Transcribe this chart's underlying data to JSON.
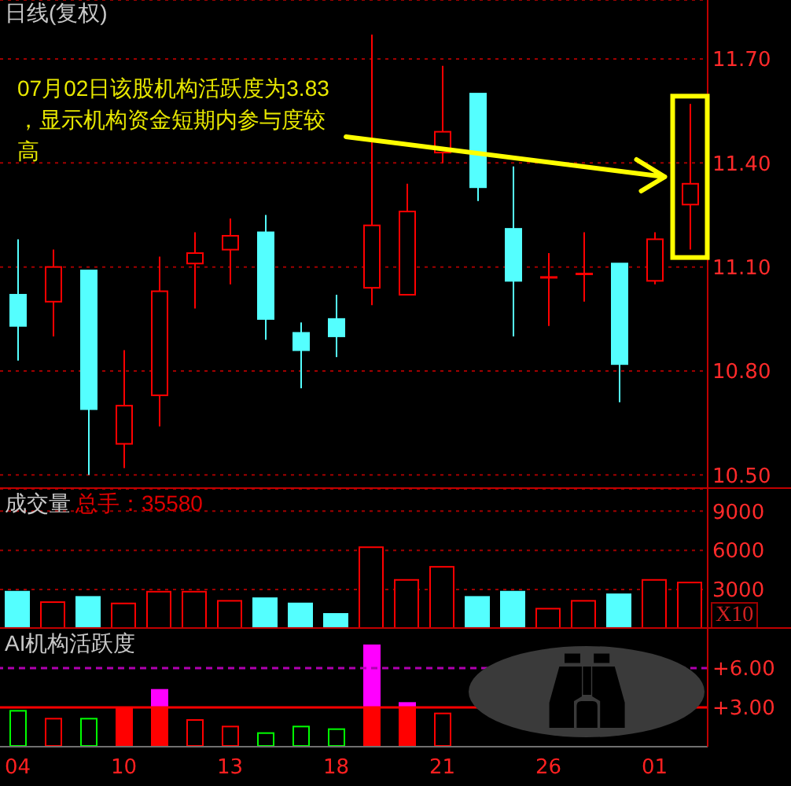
{
  "chart_data": [
    {
      "type": "candlestick",
      "title": "日线(复权)",
      "categories": [
        "04",
        null,
        null,
        "10",
        null,
        null,
        "13",
        null,
        null,
        "18",
        null,
        null,
        "21",
        null,
        null,
        "26",
        null,
        null,
        "01",
        null
      ],
      "ohlc": [
        [
          11.02,
          11.18,
          10.83,
          10.93
        ],
        [
          11.0,
          11.15,
          10.9,
          11.1
        ],
        [
          11.09,
          11.09,
          10.5,
          10.69
        ],
        [
          10.59,
          10.86,
          10.52,
          10.7
        ],
        [
          10.73,
          11.13,
          10.64,
          11.03
        ],
        [
          11.11,
          11.2,
          10.98,
          11.14
        ],
        [
          11.15,
          11.24,
          11.05,
          11.19
        ],
        [
          11.2,
          11.25,
          10.89,
          10.95
        ],
        [
          10.91,
          10.94,
          10.75,
          10.86
        ],
        [
          10.95,
          11.02,
          10.84,
          10.9
        ],
        [
          11.04,
          11.77,
          10.99,
          11.22
        ],
        [
          11.02,
          11.34,
          11.02,
          11.26
        ],
        [
          11.43,
          11.68,
          11.4,
          11.49
        ],
        [
          11.6,
          11.6,
          11.29,
          11.33
        ],
        [
          11.21,
          11.39,
          10.9,
          11.06
        ],
        [
          11.07,
          11.14,
          10.93,
          11.07
        ],
        [
          11.08,
          11.2,
          11.0,
          11.08
        ],
        [
          11.11,
          11.11,
          10.71,
          10.82
        ],
        [
          11.06,
          11.2,
          11.05,
          11.18
        ],
        [
          11.28,
          11.57,
          11.15,
          11.34
        ]
      ],
      "colors": [
        "#54ffff",
        "#ff0000",
        "#54ffff",
        "#ff0000",
        "#ff0000",
        "#ff0000",
        "#ff0000",
        "#54ffff",
        "#54ffff",
        "#54ffff",
        "#ff0000",
        "#ff0000",
        "#ff0000",
        "#54ffff",
        "#54ffff",
        "#ff0000",
        "#ff0000",
        "#54ffff",
        "#ff0000",
        "#ff0000"
      ],
      "ylim": [
        10.46,
        11.87
      ],
      "yticks": [
        {
          "value": 10.5,
          "label": "10.50"
        },
        {
          "value": 10.8,
          "label": "10.80"
        },
        {
          "value": 11.1,
          "label": "11.10"
        },
        {
          "value": 11.4,
          "label": "11.40"
        },
        {
          "value": 11.7,
          "label": "11.70"
        }
      ],
      "grid": "y",
      "tick_labels": "y",
      "annotations": [
        "07月02日该股机构活跃度为3.83，显示机构资金短期内参与度较高"
      ]
    },
    {
      "type": "bar",
      "title": "成交量",
      "ylabel": "X10",
      "categories": [
        "04",
        null,
        null,
        "10",
        null,
        null,
        "13",
        null,
        null,
        "18",
        null,
        null,
        "21",
        null,
        null,
        "26",
        null,
        null,
        "01",
        null
      ],
      "values": [
        2900,
        2100,
        2500,
        2000,
        2900,
        2900,
        2200,
        2400,
        2000,
        1200,
        6300,
        3800,
        4800,
        2500,
        2900,
        1600,
        2200,
        2700,
        3800,
        3600
      ],
      "colors": [
        "#54ffff",
        "#ff0000",
        "#54ffff",
        "#ff0000",
        "#ff0000",
        "#ff0000",
        "#ff0000",
        "#54ffff",
        "#54ffff",
        "#54ffff",
        "#ff0000",
        "#ff0000",
        "#ff0000",
        "#54ffff",
        "#54ffff",
        "#ff0000",
        "#ff0000",
        "#54ffff",
        "#ff0000",
        "#ff0000"
      ],
      "ylim": [
        0,
        10700
      ],
      "yticks": [
        3000,
        6000,
        9000
      ],
      "grid": "y",
      "tick_labels": "y",
      "annotations": [
        "总手：35580"
      ]
    },
    {
      "type": "bar",
      "title": "AI机构活跃度",
      "categories": [
        "04",
        null,
        null,
        "10",
        null,
        null,
        "13",
        null,
        null,
        "18",
        null,
        null,
        "21",
        null,
        null,
        "26",
        null,
        null,
        "01",
        null
      ],
      "stacked": true,
      "series": [
        {
          "colors": [
            "#00ff00",
            "#ff0000",
            "#00ff00",
            "#ff0000",
            "#ff0000",
            "#ff0000",
            "#ff0000",
            "#00ff00",
            "#00ff00",
            "#00ff00",
            "#ff0000",
            "#ff0000",
            "#ff0000",
            null,
            null,
            null,
            null,
            null,
            null,
            null
          ],
          "values": [
            2.8,
            2.2,
            2.2,
            3.0,
            3.0,
            2.1,
            1.6,
            1.1,
            1.6,
            1.4,
            3.0,
            3.0,
            2.6,
            null,
            null,
            null,
            null,
            null,
            null,
            null
          ]
        },
        {
          "color": "#ff00ff",
          "values": [
            null,
            null,
            null,
            null,
            1.4,
            null,
            null,
            null,
            null,
            null,
            4.8,
            0.4,
            null,
            null,
            null,
            null,
            null,
            null,
            null,
            null
          ]
        }
      ],
      "ylim": [
        0,
        9
      ],
      "yticks": [
        {
          "value": 3,
          "label": "+3.00"
        },
        {
          "value": 6,
          "label": "+6.00"
        }
      ],
      "ref_lines": [
        {
          "axis": "y",
          "value": 3,
          "color": "#ff0000",
          "line_style": "solid"
        },
        {
          "axis": "y",
          "value": 6,
          "color": "#b000b0",
          "line_style": "dashed"
        }
      ]
    }
  ]
}
